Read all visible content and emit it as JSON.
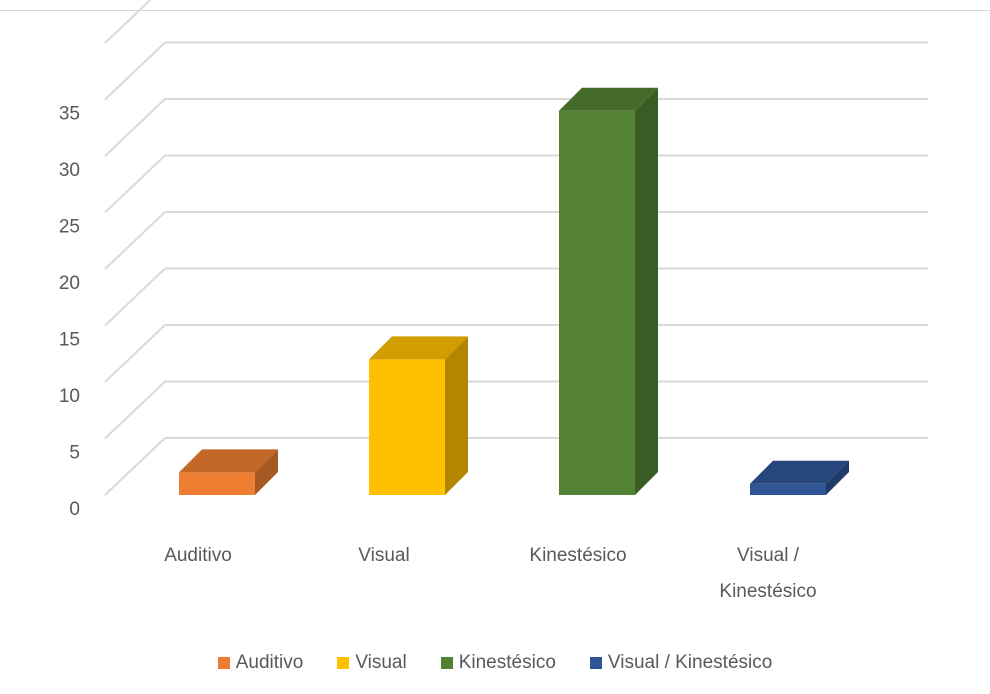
{
  "chart_data": {
    "type": "bar",
    "style": "3d-column",
    "categories": [
      "Auditivo",
      "Visual",
      "Kinestésico",
      "Visual / Kinestésico"
    ],
    "category_lines": [
      [
        "Auditivo"
      ],
      [
        "Visual"
      ],
      [
        "Kinestésico"
      ],
      [
        "Visual /",
        "Kinestésico"
      ]
    ],
    "values": [
      2,
      12,
      34,
      1
    ],
    "colors": [
      "#ed7d31",
      "#ffc000",
      "#548235",
      "#2f5597"
    ],
    "y_ticks": [
      "0",
      "5",
      "10",
      "15",
      "20",
      "25",
      "30",
      "35"
    ],
    "ylim": [
      0,
      35
    ],
    "grid": true,
    "legend_position": "bottom",
    "legend": [
      "Auditivo",
      "Visual",
      "Kinestésico",
      "Visual / Kinestésico"
    ]
  }
}
